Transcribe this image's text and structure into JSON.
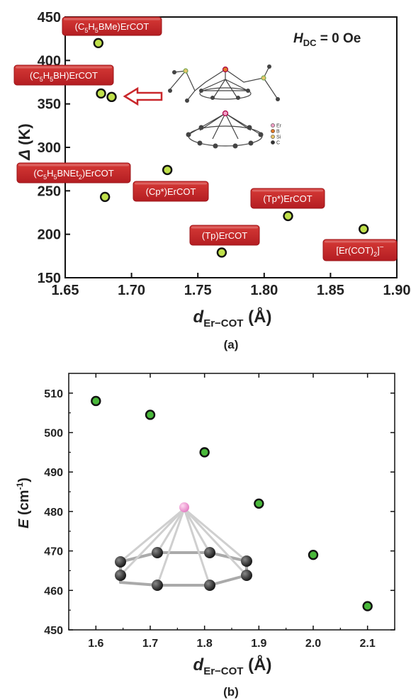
{
  "chart_data": [
    {
      "type": "scatter",
      "panel_label": "(a)",
      "xlabel": {
        "main": "d",
        "sub": "Er−COT",
        "unit": " (Å)"
      },
      "ylabel": {
        "main": "Δ",
        "unit": " (K)"
      },
      "xlim": [
        1.65,
        1.9
      ],
      "ylim": [
        150,
        450
      ],
      "xticks": [
        "1.65",
        "1.70",
        "1.75",
        "1.80",
        "1.85",
        "1.90"
      ],
      "yticks": [
        "150",
        "200",
        "250",
        "300",
        "350",
        "400",
        "450"
      ],
      "annotation": {
        "main": "H",
        "sub": "DC",
        "rest": " = 0 Oe"
      },
      "inset_legend": [
        "Er",
        "B",
        "Si",
        "C"
      ],
      "marker_fill": "#bfe04a",
      "marker_edge": "#111111",
      "label_color": "#c9272b",
      "points": [
        {
          "x": 1.675,
          "y": 420
        },
        {
          "x": 1.677,
          "y": 362
        },
        {
          "x": 1.685,
          "y": 358
        },
        {
          "x": 1.68,
          "y": 243
        },
        {
          "x": 1.727,
          "y": 274
        },
        {
          "x": 1.768,
          "y": 179
        },
        {
          "x": 1.818,
          "y": 221
        },
        {
          "x": 1.875,
          "y": 206
        }
      ],
      "labels": [
        {
          "key": "l1"
        },
        {
          "key": "l2"
        },
        {
          "key": "l3"
        },
        {
          "key": "l4"
        },
        {
          "key": "l5"
        },
        {
          "key": "l6"
        },
        {
          "key": "l7"
        }
      ]
    },
    {
      "type": "scatter",
      "panel_label": "(b)",
      "xlabel": {
        "main": "d",
        "sub": "Er−COT",
        "unit": " (Å)"
      },
      "ylabel": {
        "main": "E",
        "unit": " (cm",
        "sup": "-1",
        "close": ")"
      },
      "xlim": [
        1.55,
        2.15
      ],
      "ylim": [
        450,
        515
      ],
      "xticks": [
        "1.6",
        "1.7",
        "1.8",
        "1.9",
        "2.0",
        "2.1"
      ],
      "yticks": [
        "450",
        "460",
        "470",
        "480",
        "490",
        "500",
        "510"
      ],
      "marker_fill": "#49b83a",
      "marker_edge": "#111111",
      "points": [
        {
          "x": 1.6,
          "y": 508
        },
        {
          "x": 1.7,
          "y": 504.5
        },
        {
          "x": 1.8,
          "y": 495
        },
        {
          "x": 1.9,
          "y": 482
        },
        {
          "x": 2.0,
          "y": 469
        },
        {
          "x": 2.1,
          "y": 456
        }
      ]
    }
  ],
  "panel_a_labels": {
    "l1": {
      "pre": "(C",
      "s1": "5",
      "mid1": "H",
      "s2": "5",
      "post": "BMe)ErCOT"
    },
    "l2": {
      "pre": "(C",
      "s1": "5",
      "mid1": "H",
      "s2": "5",
      "post": "BH)ErCOT"
    },
    "l3": {
      "pre": "(C",
      "s1": "5",
      "mid1": "H",
      "s2": "5",
      "post": "BNEt",
      "s3": "2",
      "post2": ")ErCOT"
    },
    "l4": {
      "text": "(Cp*)ErCOT"
    },
    "l5": {
      "text": "(Tp)ErCOT"
    },
    "l6": {
      "text": "(Tp*)ErCOT"
    },
    "l7": {
      "pre": "[Er(COT)",
      "s1": "2",
      "post": "]",
      "sup": "−"
    }
  }
}
